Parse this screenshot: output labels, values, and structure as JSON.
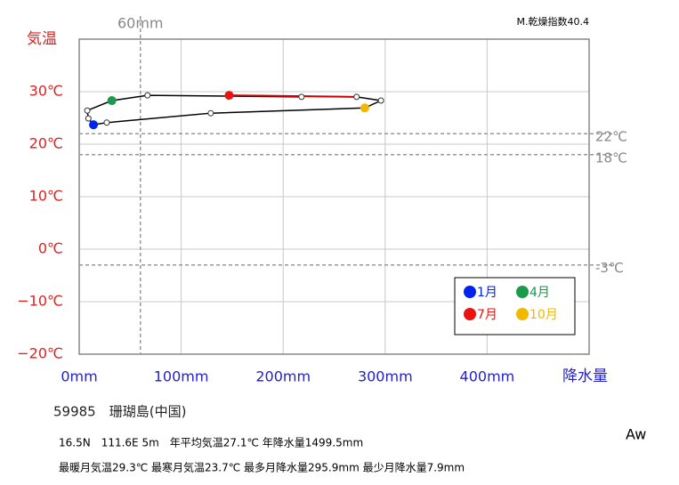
{
  "chart_data": {
    "type": "climograph",
    "y_label": "気温",
    "x_label": "降水量",
    "index_label": "M.乾燥指数40.4",
    "xlim": [
      0,
      500
    ],
    "ylim": [
      -20,
      40
    ],
    "xticks": [
      {
        "value": 0,
        "label": "0mm"
      },
      {
        "value": 100,
        "label": "100mm"
      },
      {
        "value": 200,
        "label": "200mm"
      },
      {
        "value": 300,
        "label": "300mm"
      },
      {
        "value": 400,
        "label": "400mm"
      }
    ],
    "yticks": [
      {
        "value": -20,
        "label": "−20℃"
      },
      {
        "value": -10,
        "label": "−10℃"
      },
      {
        "value": 0,
        "label": "0℃"
      },
      {
        "value": 10,
        "label": "10℃"
      },
      {
        "value": 20,
        "label": "20℃"
      },
      {
        "value": 30,
        "label": "30℃"
      }
    ],
    "x_reference": [
      {
        "value": 60,
        "label": "60mm"
      }
    ],
    "y_reference": [
      {
        "value": 22,
        "label": "22℃"
      },
      {
        "value": 18,
        "label": "18℃"
      },
      {
        "value": -3,
        "label": "-3℃"
      }
    ],
    "grid": true,
    "precipitation": [
      14,
      9,
      7.9,
      32,
      67,
      218,
      147,
      272,
      295.9,
      280,
      129,
      27
    ],
    "temperature": [
      23.7,
      24.9,
      26.4,
      28.3,
      29.3,
      29.0,
      29.3,
      29.0,
      28.3,
      26.9,
      25.9,
      24.1
    ],
    "point_colors": [
      "#0022ee",
      "#ffffff",
      "#ffffff",
      "#1a9a4a",
      "#ffffff",
      "#ffffff",
      "#ee1111",
      "#ffffff",
      "#ffffff",
      "#f2b800",
      "#ffffff",
      "#ffffff"
    ],
    "summer_segment_color": "#cc0000",
    "legend": [
      {
        "label": "1月",
        "color": "#0022ee"
      },
      {
        "label": "4月",
        "color": "#1a9a4a"
      },
      {
        "label": "7月",
        "color": "#ee1111"
      },
      {
        "label": "10月",
        "color": "#f2b800"
      }
    ],
    "station": "59985　珊瑚島(中国)",
    "info_line_1": "16.5N　111.6E 5m　年平均気温27.1℃ 年降水量1499.5mm",
    "info_line_2": "最暖月気温29.3℃ 最寒月気温23.7℃ 最多月降水量295.9mm 最少月降水量7.9mm",
    "climate": "Aw"
  }
}
